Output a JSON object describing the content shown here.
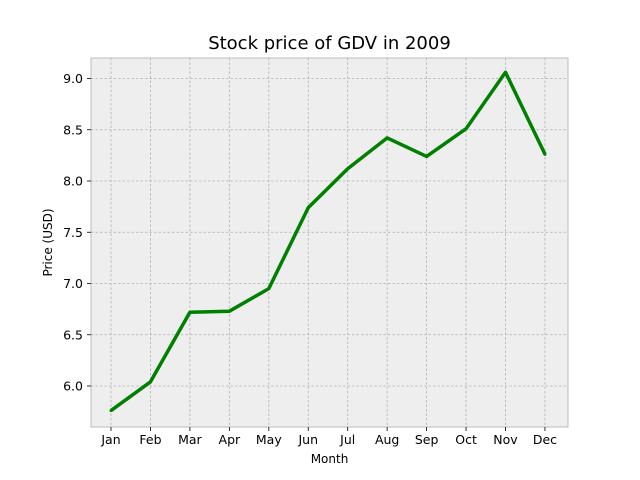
{
  "chart_data": {
    "type": "line",
    "title": "Stock price of GDV in 2009",
    "xlabel": "Month",
    "ylabel": "Price (USD)",
    "categories": [
      "Jan",
      "Feb",
      "Mar",
      "Apr",
      "May",
      "Jun",
      "Jul",
      "Aug",
      "Sep",
      "Oct",
      "Nov",
      "Dec"
    ],
    "series": [
      {
        "values": [
          5.76,
          6.04,
          6.72,
          6.73,
          6.95,
          7.74,
          8.12,
          8.42,
          8.24,
          8.51,
          9.06,
          8.26
        ],
        "color": "#008000"
      }
    ],
    "yticks": [
      "6.0",
      "6.5",
      "7.0",
      "7.5",
      "8.0",
      "8.5",
      "9.0"
    ],
    "ylim": [
      5.6,
      9.2
    ],
    "grid": true,
    "grid_style": "dashed",
    "plot_background": "#eeeeee"
  }
}
